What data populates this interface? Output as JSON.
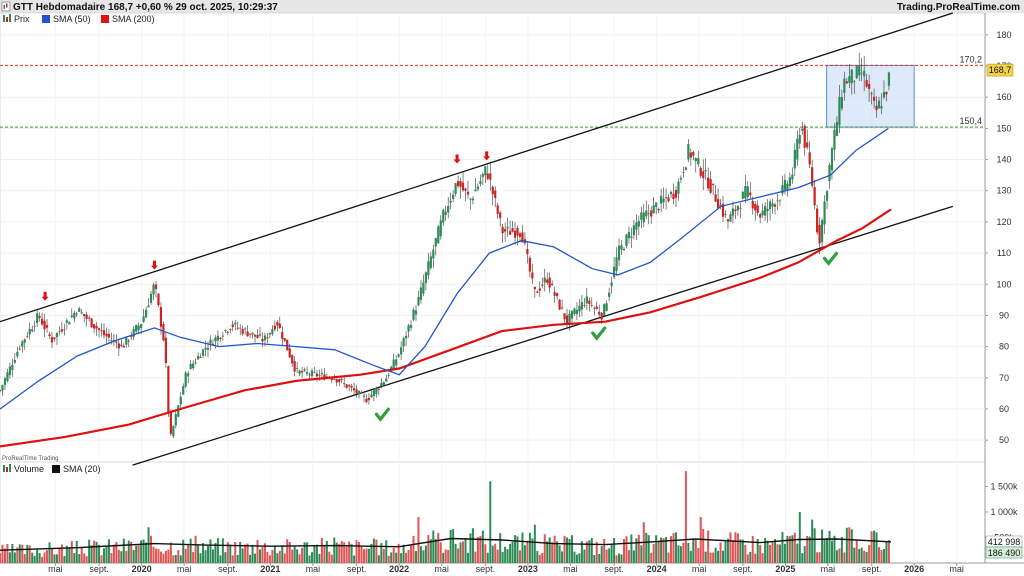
{
  "header": {
    "title": "GTT Hebdomadaire 168,7 +0,60 % 29 oct. 2025, 10:29:37",
    "brand": "Trading.ProRealTime.com"
  },
  "price_legend": [
    {
      "label": "Prix",
      "color": "#2e8b57",
      "icon": "candle-icon"
    },
    {
      "label": "SMA (50)",
      "color": "#2255cc"
    },
    {
      "label": "SMA (200)",
      "color": "#dd1111"
    }
  ],
  "volume_legend": [
    {
      "label": "Volume",
      "color": "#2e8b57",
      "icon": "volume-bars-icon"
    },
    {
      "label": "SMA (20)",
      "color": "#111111"
    }
  ],
  "watermark": "ProRealTime Trading",
  "price_badge": "168,7",
  "volume_badges": {
    "top": "412 998",
    "bottom": "186 490"
  },
  "levels": [
    {
      "label": "170,2",
      "value": 170.2,
      "color": "#dd3333"
    },
    {
      "label": "150,4",
      "value": 150.4,
      "color": "#339933"
    }
  ],
  "colors": {
    "up": "#2e8b57",
    "down": "#cc2222",
    "sma50": "#2255cc",
    "sma200": "#dd1111",
    "channel": "#111111",
    "box": "#c8dcf5"
  },
  "chart_data": {
    "type": "candlestick",
    "title": "GTT Hebdomadaire",
    "timeframe": "weekly",
    "last_price": 168.7,
    "change_pct": 0.6,
    "y_ticks": [
      "180",
      "170",
      "160",
      "150",
      "140",
      "130",
      "120",
      "110",
      "100",
      "90",
      "80",
      "70",
      "60",
      "50"
    ],
    "ylim": [
      43,
      187
    ],
    "volume_ticks": [
      "1 500k",
      "1 000k",
      "500k"
    ],
    "volume_ylim": [
      0,
      1900
    ],
    "x_tick_labels": [
      {
        "label": "mai",
        "date": 2019.33,
        "bold": false
      },
      {
        "label": "sept.",
        "date": 2019.67,
        "bold": false
      },
      {
        "label": "2020",
        "date": 2020.0,
        "bold": true
      },
      {
        "label": "mai",
        "date": 2020.33,
        "bold": false
      },
      {
        "label": "sept.",
        "date": 2020.67,
        "bold": false
      },
      {
        "label": "2021",
        "date": 2021.0,
        "bold": true
      },
      {
        "label": "mai",
        "date": 2021.33,
        "bold": false
      },
      {
        "label": "sept.",
        "date": 2021.67,
        "bold": false
      },
      {
        "label": "2022",
        "date": 2022.0,
        "bold": true
      },
      {
        "label": "mai",
        "date": 2022.33,
        "bold": false
      },
      {
        "label": "sept.",
        "date": 2022.67,
        "bold": false
      },
      {
        "label": "2023",
        "date": 2023.0,
        "bold": true
      },
      {
        "label": "mai",
        "date": 2023.33,
        "bold": false
      },
      {
        "label": "sept.",
        "date": 2023.67,
        "bold": false
      },
      {
        "label": "2024",
        "date": 2024.0,
        "bold": true
      },
      {
        "label": "mai",
        "date": 2024.33,
        "bold": false
      },
      {
        "label": "sept.",
        "date": 2024.67,
        "bold": false
      },
      {
        "label": "2025",
        "date": 2025.0,
        "bold": true
      },
      {
        "label": "mai",
        "date": 2025.33,
        "bold": false
      },
      {
        "label": "sept.",
        "date": 2025.67,
        "bold": false
      },
      {
        "label": "2026",
        "date": 2026.0,
        "bold": true
      },
      {
        "label": "mai",
        "date": 2026.33,
        "bold": false
      }
    ],
    "price_series": [
      {
        "date": 2018.9,
        "price": 66
      },
      {
        "date": 2019.05,
        "price": 80
      },
      {
        "date": 2019.2,
        "price": 90
      },
      {
        "date": 2019.3,
        "price": 82
      },
      {
        "date": 2019.5,
        "price": 92
      },
      {
        "date": 2019.7,
        "price": 84
      },
      {
        "date": 2019.85,
        "price": 80
      },
      {
        "date": 2020.0,
        "price": 88
      },
      {
        "date": 2020.1,
        "price": 100
      },
      {
        "date": 2020.18,
        "price": 80
      },
      {
        "date": 2020.22,
        "price": 50
      },
      {
        "date": 2020.35,
        "price": 72
      },
      {
        "date": 2020.5,
        "price": 80
      },
      {
        "date": 2020.7,
        "price": 87
      },
      {
        "date": 2020.95,
        "price": 82
      },
      {
        "date": 2021.05,
        "price": 88
      },
      {
        "date": 2021.2,
        "price": 72
      },
      {
        "date": 2021.5,
        "price": 70
      },
      {
        "date": 2021.75,
        "price": 63
      },
      {
        "date": 2021.9,
        "price": 70
      },
      {
        "date": 2022.0,
        "price": 78
      },
      {
        "date": 2022.15,
        "price": 95
      },
      {
        "date": 2022.35,
        "price": 123
      },
      {
        "date": 2022.45,
        "price": 133
      },
      {
        "date": 2022.55,
        "price": 127
      },
      {
        "date": 2022.68,
        "price": 137
      },
      {
        "date": 2022.8,
        "price": 117
      },
      {
        "date": 2022.95,
        "price": 117
      },
      {
        "date": 2023.05,
        "price": 97
      },
      {
        "date": 2023.15,
        "price": 102
      },
      {
        "date": 2023.3,
        "price": 88
      },
      {
        "date": 2023.45,
        "price": 95
      },
      {
        "date": 2023.58,
        "price": 90
      },
      {
        "date": 2023.7,
        "price": 110
      },
      {
        "date": 2023.85,
        "price": 120
      },
      {
        "date": 2024.0,
        "price": 125
      },
      {
        "date": 2024.15,
        "price": 130
      },
      {
        "date": 2024.25,
        "price": 143
      },
      {
        "date": 2024.4,
        "price": 133
      },
      {
        "date": 2024.55,
        "price": 120
      },
      {
        "date": 2024.7,
        "price": 130
      },
      {
        "date": 2024.8,
        "price": 122
      },
      {
        "date": 2024.95,
        "price": 128
      },
      {
        "date": 2025.05,
        "price": 135
      },
      {
        "date": 2025.12,
        "price": 152
      },
      {
        "date": 2025.2,
        "price": 135
      },
      {
        "date": 2025.26,
        "price": 113
      },
      {
        "date": 2025.35,
        "price": 140
      },
      {
        "date": 2025.45,
        "price": 165
      },
      {
        "date": 2025.6,
        "price": 168
      },
      {
        "date": 2025.7,
        "price": 155
      },
      {
        "date": 2025.78,
        "price": 162
      },
      {
        "date": 2025.82,
        "price": 168.7
      }
    ],
    "sma50": [
      {
        "date": 2018.9,
        "price": 60
      },
      {
        "date": 2019.2,
        "price": 69
      },
      {
        "date": 2019.5,
        "price": 77
      },
      {
        "date": 2019.8,
        "price": 82
      },
      {
        "date": 2020.1,
        "price": 86
      },
      {
        "date": 2020.3,
        "price": 83
      },
      {
        "date": 2020.6,
        "price": 80
      },
      {
        "date": 2020.9,
        "price": 81
      },
      {
        "date": 2021.2,
        "price": 80
      },
      {
        "date": 2021.5,
        "price": 79
      },
      {
        "date": 2021.8,
        "price": 74
      },
      {
        "date": 2022.0,
        "price": 71
      },
      {
        "date": 2022.2,
        "price": 80
      },
      {
        "date": 2022.45,
        "price": 97
      },
      {
        "date": 2022.7,
        "price": 110
      },
      {
        "date": 2022.95,
        "price": 114
      },
      {
        "date": 2023.2,
        "price": 112
      },
      {
        "date": 2023.5,
        "price": 105
      },
      {
        "date": 2023.7,
        "price": 103
      },
      {
        "date": 2023.95,
        "price": 107
      },
      {
        "date": 2024.2,
        "price": 115
      },
      {
        "date": 2024.5,
        "price": 125
      },
      {
        "date": 2024.8,
        "price": 128
      },
      {
        "date": 2025.1,
        "price": 131
      },
      {
        "date": 2025.35,
        "price": 135
      },
      {
        "date": 2025.55,
        "price": 143
      },
      {
        "date": 2025.8,
        "price": 150
      }
    ],
    "sma200": [
      {
        "date": 2018.9,
        "price": 48
      },
      {
        "date": 2019.4,
        "price": 51
      },
      {
        "date": 2019.9,
        "price": 55
      },
      {
        "date": 2020.3,
        "price": 60
      },
      {
        "date": 2020.8,
        "price": 66
      },
      {
        "date": 2021.2,
        "price": 69
      },
      {
        "date": 2021.7,
        "price": 71
      },
      {
        "date": 2022.0,
        "price": 73
      },
      {
        "date": 2022.4,
        "price": 79
      },
      {
        "date": 2022.8,
        "price": 85
      },
      {
        "date": 2023.2,
        "price": 87
      },
      {
        "date": 2023.6,
        "price": 88
      },
      {
        "date": 2023.95,
        "price": 91
      },
      {
        "date": 2024.35,
        "price": 96
      },
      {
        "date": 2024.8,
        "price": 102
      },
      {
        "date": 2025.1,
        "price": 107
      },
      {
        "date": 2025.4,
        "price": 114
      },
      {
        "date": 2025.6,
        "price": 118
      },
      {
        "date": 2025.82,
        "price": 124
      }
    ],
    "channel_upper": [
      {
        "date": 2018.9,
        "price": 88
      },
      {
        "date": 2026.3,
        "price": 187
      }
    ],
    "channel_lower": [
      {
        "date": 2019.93,
        "price": 42
      },
      {
        "date": 2026.3,
        "price": 125
      }
    ],
    "zone_box": {
      "from": 2025.32,
      "to": 2026.0,
      "low": 150.4,
      "high": 170.2
    },
    "sell_markers": [
      {
        "date": 2019.25,
        "price": 96
      },
      {
        "date": 2020.1,
        "price": 106
      },
      {
        "date": 2022.45,
        "price": 140
      },
      {
        "date": 2022.68,
        "price": 141
      }
    ],
    "buy_markers": [
      {
        "date": 2021.87,
        "price": 58
      },
      {
        "date": 2023.55,
        "price": 84
      },
      {
        "date": 2025.35,
        "price": 108
      }
    ],
    "volume_series": [
      {
        "date": 2020.05,
        "volume": 700
      },
      {
        "date": 2020.9,
        "volume": 450
      },
      {
        "date": 2021.5,
        "volume": 500
      },
      {
        "date": 2022.15,
        "volume": 900
      },
      {
        "date": 2022.4,
        "volume": 650
      },
      {
        "date": 2022.7,
        "volume": 1600
      },
      {
        "date": 2023.05,
        "volume": 750
      },
      {
        "date": 2023.3,
        "volume": 500
      },
      {
        "date": 2023.9,
        "volume": 800
      },
      {
        "date": 2024.22,
        "volume": 1800
      },
      {
        "date": 2024.35,
        "volume": 900
      },
      {
        "date": 2025.12,
        "volume": 1000
      },
      {
        "date": 2025.2,
        "volume": 850
      },
      {
        "date": 2025.5,
        "volume": 700
      },
      {
        "date": 2025.8,
        "volume": 450
      }
    ],
    "volume_sma20": [
      {
        "date": 2018.9,
        "volume": 250
      },
      {
        "date": 2019.5,
        "volume": 300
      },
      {
        "date": 2020.1,
        "volume": 380
      },
      {
        "date": 2020.5,
        "volume": 350
      },
      {
        "date": 2021.0,
        "volume": 330
      },
      {
        "date": 2021.5,
        "volume": 340
      },
      {
        "date": 2022.0,
        "volume": 320
      },
      {
        "date": 2022.4,
        "volume": 480
      },
      {
        "date": 2022.8,
        "volume": 450
      },
      {
        "date": 2023.2,
        "volume": 380
      },
      {
        "date": 2023.6,
        "volume": 360
      },
      {
        "date": 2024.0,
        "volume": 420
      },
      {
        "date": 2024.3,
        "volume": 470
      },
      {
        "date": 2024.8,
        "volume": 400
      },
      {
        "date": 2025.1,
        "volume": 460
      },
      {
        "date": 2025.4,
        "volume": 470
      },
      {
        "date": 2025.82,
        "volume": 413
      }
    ]
  }
}
